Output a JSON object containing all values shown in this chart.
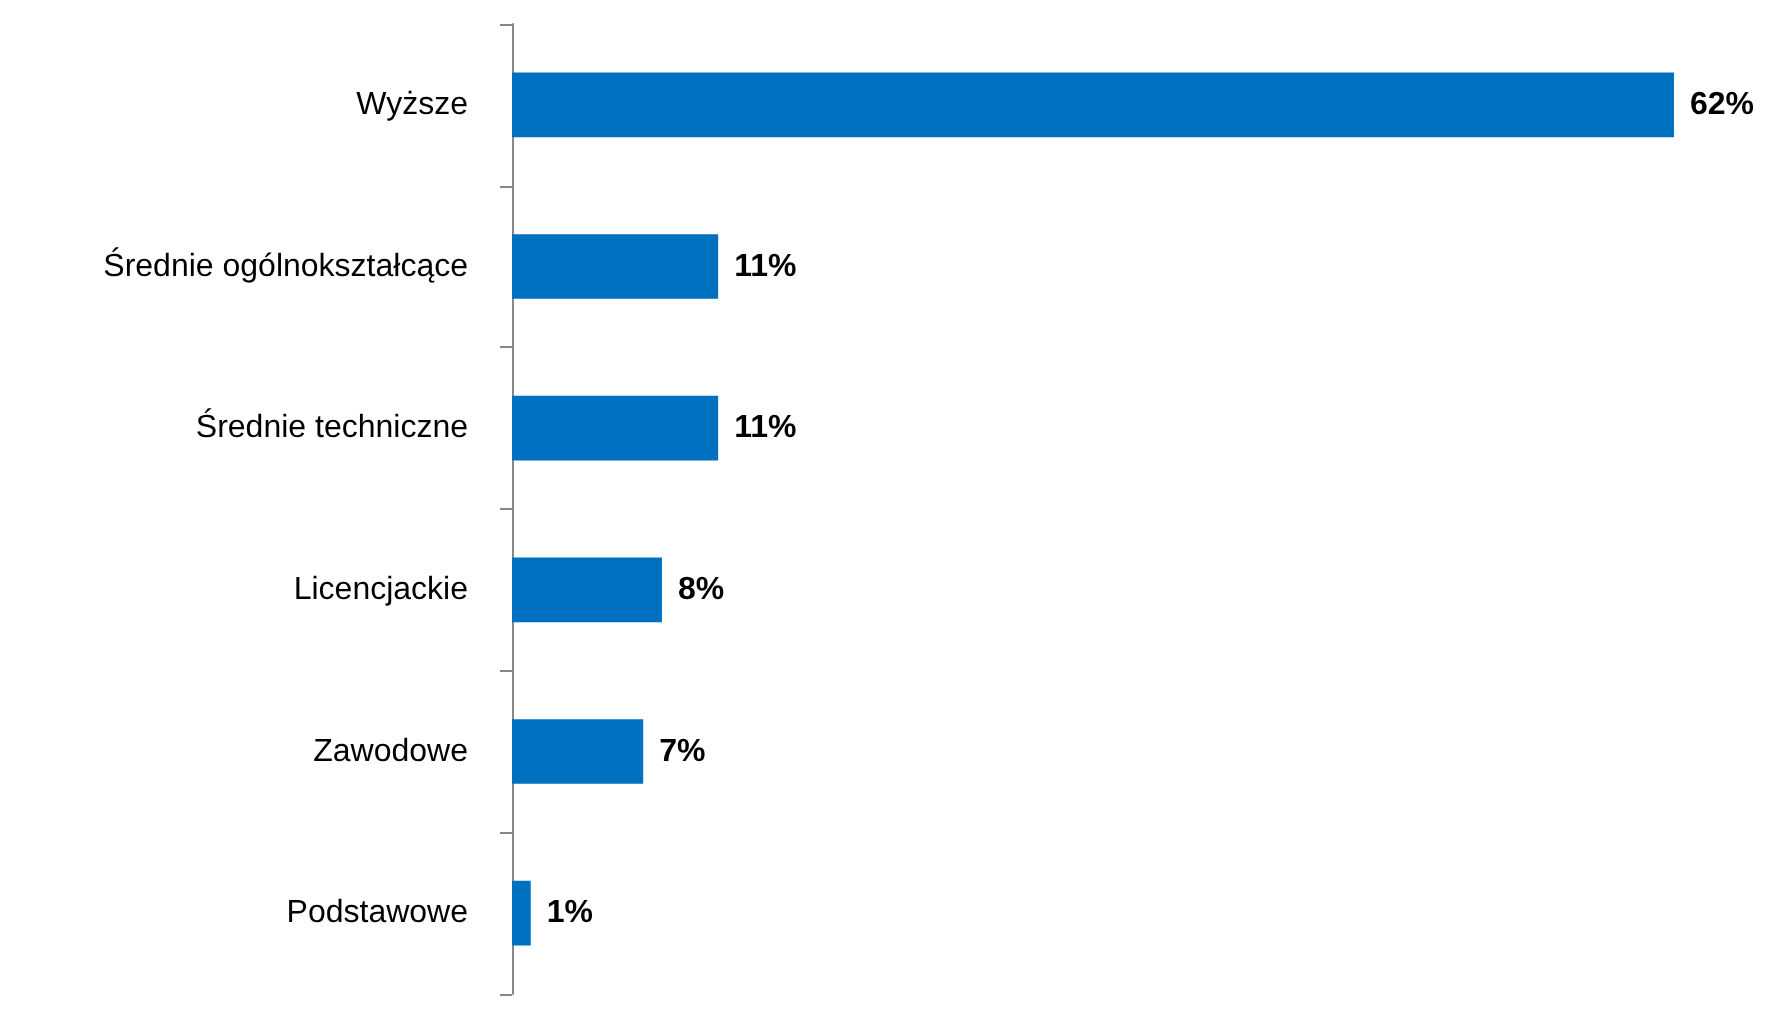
{
  "chart_data": {
    "type": "bar",
    "orientation": "horizontal",
    "categories": [
      "Wyższe",
      "Średnie ogólnokształcące",
      "Średnie techniczne",
      "Licencjackie",
      "Zawodowe",
      "Podstawowe"
    ],
    "values": [
      62,
      11,
      11,
      8,
      7,
      1
    ],
    "value_labels": [
      "62%",
      "11%",
      "11%",
      "8%",
      "7%",
      "1%"
    ],
    "color": "#0070c0"
  }
}
